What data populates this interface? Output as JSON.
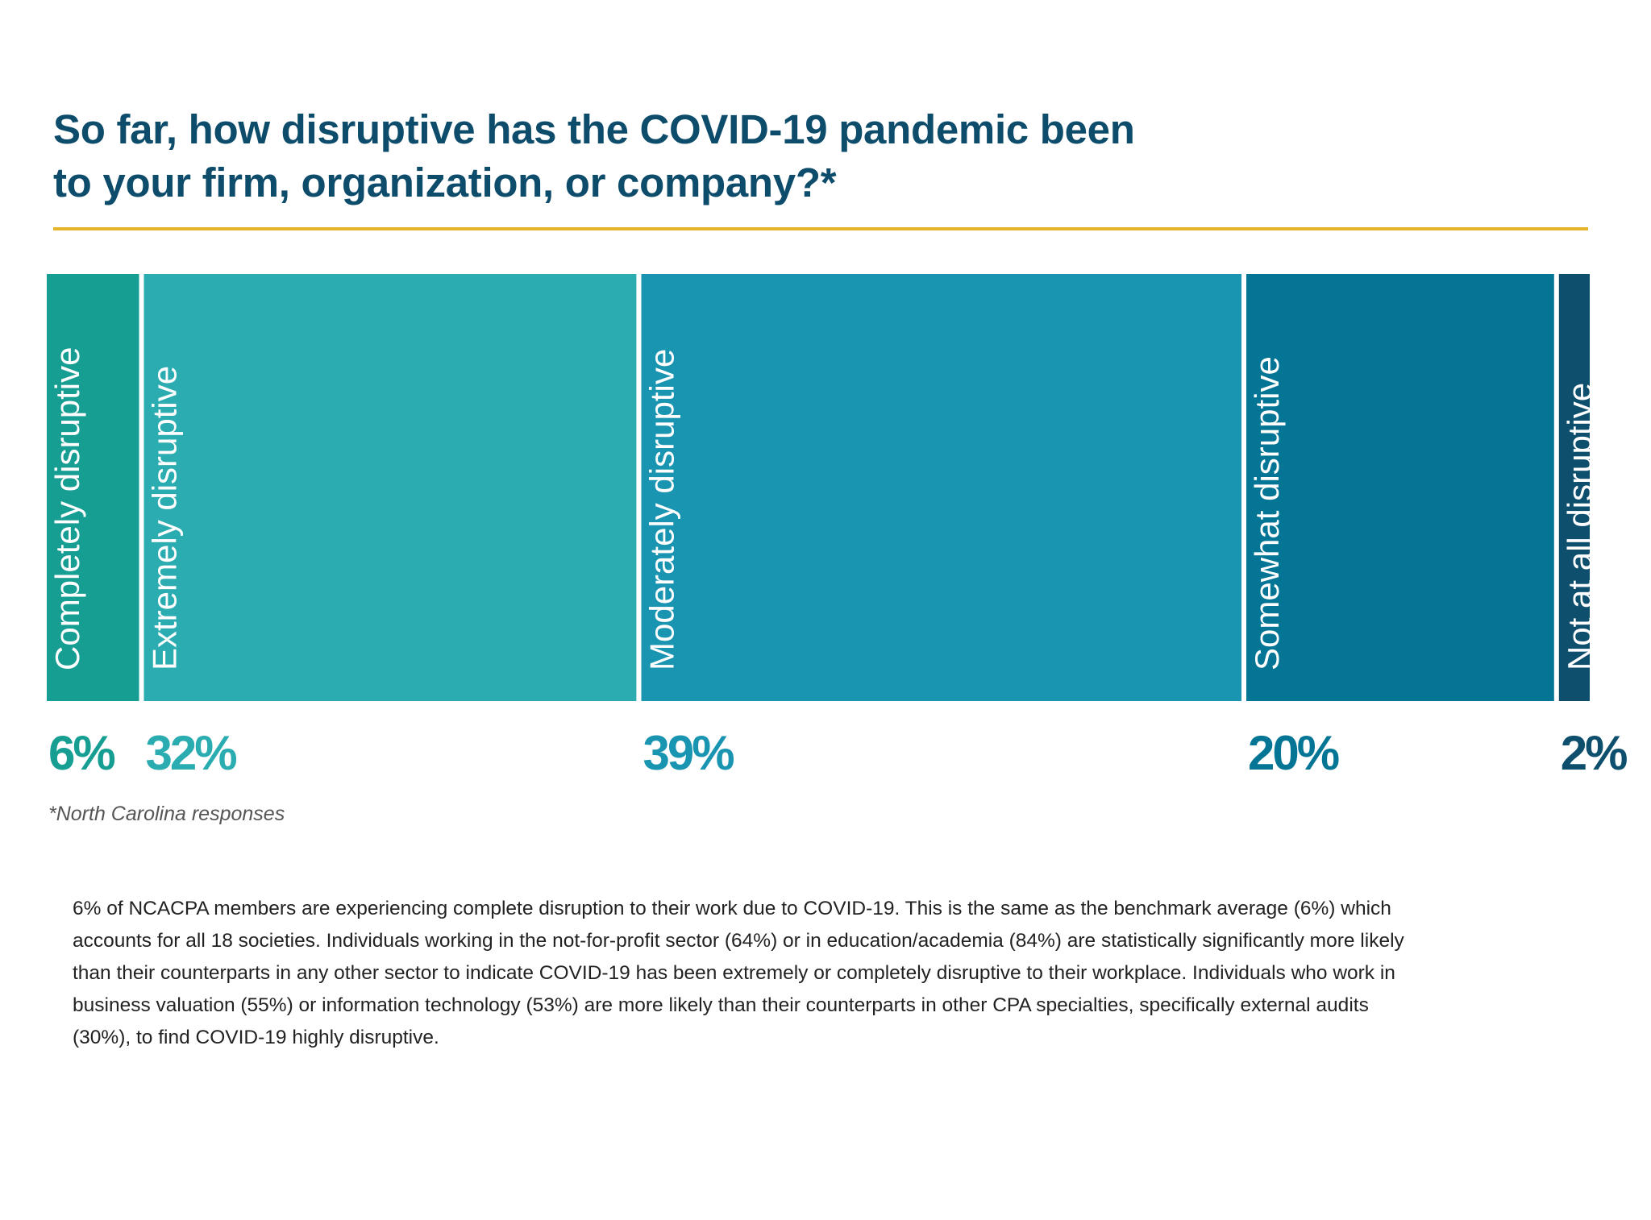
{
  "title_lines": [
    "So far, how disruptive has the COVID-19 pandemic been",
    "to your firm, organization, or company?*"
  ],
  "colors": {
    "title": "#0e4c6b",
    "rule": "#e6b42a",
    "footnote": "#555555",
    "body_text": "#222222"
  },
  "chart_data": {
    "type": "bar",
    "orientation": "horizontal-stacked-100",
    "categories": [
      "Completely disruptive",
      "Extremely disruptive",
      "Moderately disruptive",
      "Somewhat disruptive",
      "Not at all disruptive"
    ],
    "values": [
      6,
      32,
      39,
      20,
      2
    ],
    "value_labels": [
      "6%",
      "32%",
      "39%",
      "20%",
      "2%"
    ],
    "colors": [
      "#169e93",
      "#2aacb0",
      "#1a95b1",
      "#047595",
      "#0d4f6d"
    ],
    "total": 100
  },
  "footnote": "*North Carolina responses",
  "body_lines": [
    "6% of NCACPA members are experiencing complete disruption to their work due to COVID-19. This is the same as the benchmark average (6%) which",
    "accounts for all 18 societies. Individuals working in the not-for-profit sector (64%) or in education/academia (84%) are statistically significantly more likely",
    "than their counterparts in any other sector to indicate COVID-19 has been extremely or completely disruptive to their workplace. Individuals who work in",
    "business valuation (55%) or information technology (53%) are more likely than their counterparts in other CPA specialties, specifically external audits",
    "(30%), to find COVID-19 highly disruptive."
  ]
}
